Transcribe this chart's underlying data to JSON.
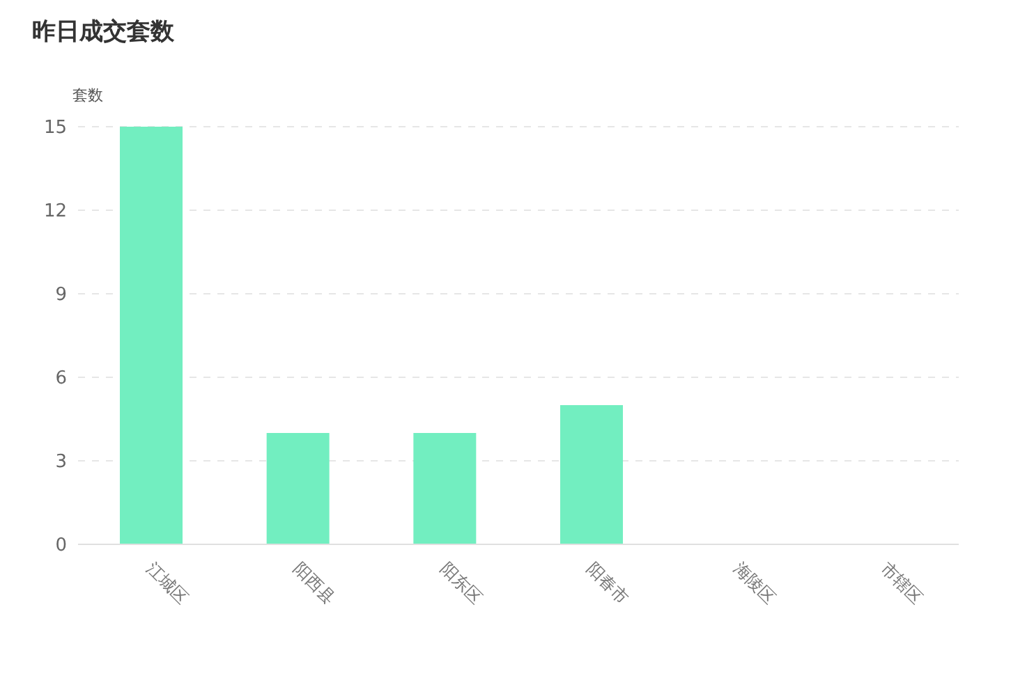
{
  "chart_data": {
    "type": "bar",
    "title": "昨日成交套数",
    "ylabel": "套数",
    "categories": [
      "江城区",
      "阳西县",
      "阳东区",
      "阳春市",
      "海陵区",
      "市辖区"
    ],
    "values": [
      15,
      4,
      4,
      5,
      0,
      0
    ],
    "color": "#72eec0",
    "ylim": [
      0,
      15
    ],
    "yticks": [
      0,
      3,
      6,
      9,
      12,
      15
    ],
    "grid": "y"
  }
}
